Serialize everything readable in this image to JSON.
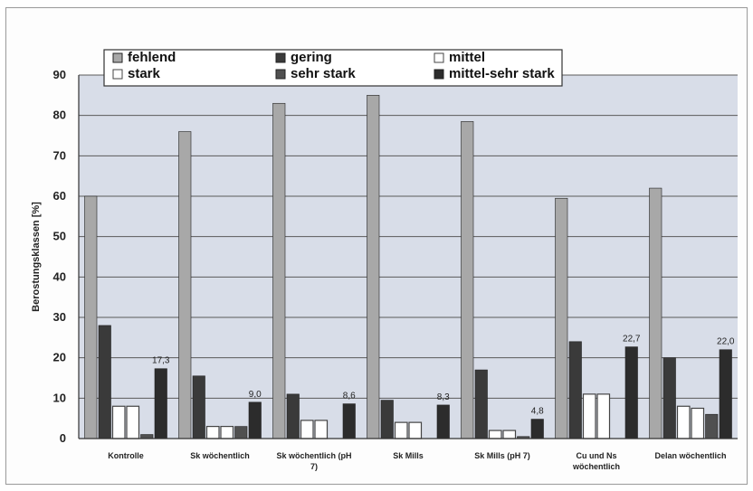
{
  "chart_data": {
    "type": "bar",
    "title": "",
    "xlabel": "",
    "ylabel": "Berostungsklassen [%]",
    "ylim": [
      0,
      90
    ],
    "yticks": [
      0,
      10,
      20,
      30,
      40,
      50,
      60,
      70,
      80,
      90
    ],
    "grid": true,
    "legend_position": "top",
    "categories": [
      "Kontrolle",
      "Sk wöchentlich",
      "Sk wöchentlich (pH 7)",
      "Sk Mills",
      "Sk Mills (pH 7)",
      "Cu und Ns wöchentlich",
      "Delan wöchentlich"
    ],
    "series": [
      {
        "name": "fehlend",
        "color": "#a8a8a8",
        "values": [
          60,
          76,
          83,
          85,
          78.5,
          59.5,
          62
        ]
      },
      {
        "name": "gering",
        "color": "#3a3a3a",
        "values": [
          28,
          15.5,
          11,
          9.5,
          17,
          24,
          20
        ]
      },
      {
        "name": "mittel",
        "color": "#ffffff",
        "values": [
          8,
          3,
          4.5,
          4,
          2,
          11,
          8
        ]
      },
      {
        "name": "stark",
        "color": "#ffffff",
        "values": [
          8,
          3,
          4.5,
          4,
          2,
          11,
          7.5
        ]
      },
      {
        "name": "sehr stark",
        "color": "#505050",
        "values": [
          1,
          3,
          0,
          0,
          0.5,
          0,
          6
        ]
      },
      {
        "name": "mittel-sehr stark",
        "color": "#2c2c2c",
        "values": [
          17.3,
          9.0,
          8.6,
          8.3,
          4.8,
          22.7,
          22.0
        ]
      }
    ],
    "data_labels": [
      "17,3",
      "9,0",
      "8,6",
      "8,3",
      "4,8",
      "22,7",
      "22,0"
    ]
  }
}
